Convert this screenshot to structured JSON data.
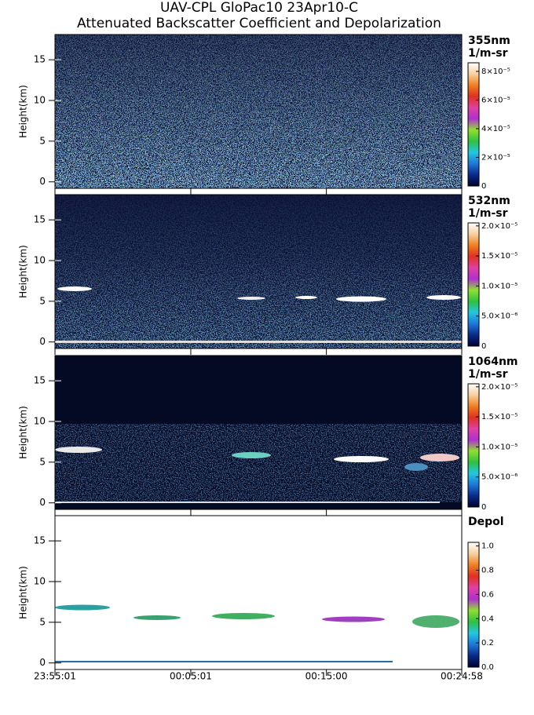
{
  "title": "UAV-CPL GloPac10 23Apr10-C",
  "subtitle": "Attenuated Backscatter Coefficient and Depolarization",
  "colormap": [
    "#000030",
    "#0a2a8a",
    "#1e78d8",
    "#22c8e0",
    "#30c040",
    "#90e030",
    "#b030d0",
    "#e040a0",
    "#e03020",
    "#f08020",
    "#f8d0a0",
    "#ffffff"
  ],
  "chart_data": [
    {
      "type": "heatmap",
      "ylabel": "Height(km)",
      "ylim": [
        -0.8,
        18.1
      ],
      "yticks": [
        0,
        5,
        10,
        15
      ],
      "colorbar_title": [
        "355nm",
        "1/m-sr"
      ],
      "clim": [
        0,
        8.6e-05
      ],
      "background": "#0c1236",
      "cticks": [
        0,
        {
          "value": 2e-05,
          "label": "2×10⁻⁵"
        },
        {
          "value": 4e-05,
          "label": "4×10⁻⁵"
        },
        {
          "value": 6e-05,
          "label": "6×10⁻⁵"
        },
        {
          "value": 8e-05,
          "label": "8×10⁻⁵"
        }
      ]
    },
    {
      "type": "heatmap",
      "ylabel": "Height(km)",
      "ylim": [
        -0.8,
        18.1
      ],
      "yticks": [
        0,
        5,
        10,
        15
      ],
      "colorbar_title": [
        "532nm",
        "1/m-sr"
      ],
      "clim": [
        0,
        2.05e-05
      ],
      "background": "#0c1236",
      "cticks": [
        0,
        {
          "value": 5e-06,
          "label": "5.0×10⁻⁶"
        },
        {
          "value": 1e-05,
          "label": "1.0×10⁻⁵"
        },
        {
          "value": 1.5e-05,
          "label": "1.5×10⁻⁵"
        },
        {
          "value": 2e-05,
          "label": "2.0×10⁻⁵"
        }
      ]
    },
    {
      "type": "heatmap",
      "ylabel": "Height(km)",
      "ylim": [
        -0.8,
        18.1
      ],
      "yticks": [
        0,
        5,
        10,
        15
      ],
      "colorbar_title": [
        "1064nm",
        "1/m-sr"
      ],
      "clim": [
        0,
        2.05e-05
      ],
      "background": "#050a24",
      "cticks": [
        0,
        {
          "value": 5e-06,
          "label": "5.0×10⁻⁶"
        },
        {
          "value": 1e-05,
          "label": "1.0×10⁻⁵"
        },
        {
          "value": 1.5e-05,
          "label": "1.5×10⁻⁵"
        },
        {
          "value": 2e-05,
          "label": "2.0×10⁻⁵"
        }
      ]
    },
    {
      "type": "heatmap",
      "ylabel": "Height(km)",
      "ylim": [
        -0.8,
        18.1
      ],
      "yticks": [
        0,
        5,
        10,
        15
      ],
      "colorbar_title": [
        "Depol"
      ],
      "clim": [
        0,
        1.03
      ],
      "background": "#ffffff",
      "cticks": [
        {
          "value": 0,
          "label": "0.0"
        },
        {
          "value": 0.2,
          "label": "0.2"
        },
        {
          "value": 0.4,
          "label": "0.4"
        },
        {
          "value": 0.6,
          "label": "0.6"
        },
        {
          "value": 0.8,
          "label": "0.8"
        },
        {
          "value": 1,
          "label": "1.0"
        }
      ],
      "xlim": [
        0,
        1797
      ],
      "xticks": [
        {
          "value": 0,
          "label": "23:55:01"
        },
        {
          "value": 600,
          "label": "00:05:01"
        },
        {
          "value": 1199,
          "label": "00:15:00"
        },
        {
          "value": 1797,
          "label": "00:24:58"
        }
      ]
    }
  ]
}
